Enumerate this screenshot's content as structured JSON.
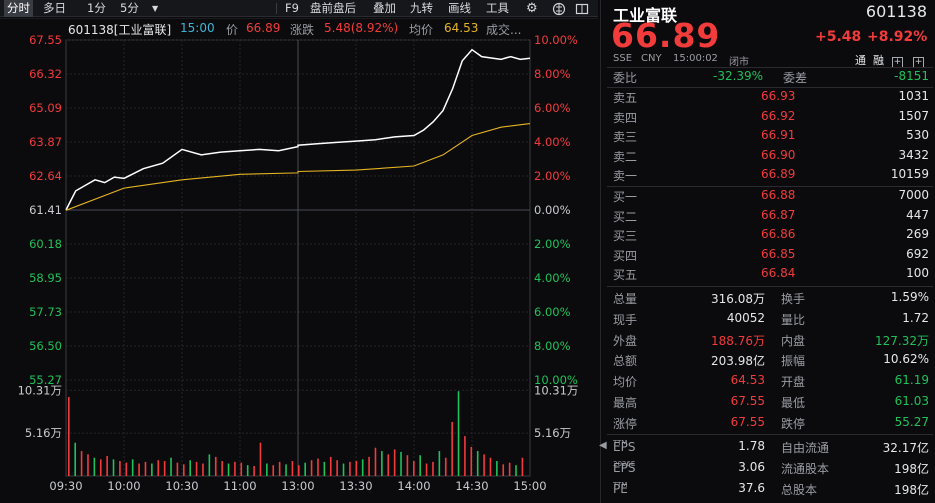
{
  "toolbar": {
    "tabs": [
      "分时",
      "多日",
      "1分",
      "5分"
    ],
    "more_icon": "caret-down-icon",
    "actions": [
      "F9",
      "盘前盘后",
      "叠加",
      "九转",
      "画线",
      "工具"
    ],
    "icons": [
      "settings-icon",
      "brain-icon"
    ]
  },
  "chart": {
    "code_label": "601138[工业富联]",
    "time": "15:00",
    "price_label": "价",
    "price": "66.89",
    "change_label": "涨跌",
    "change": "5.48(8.92%)",
    "avg_label": "均价",
    "avg": "64.53",
    "volume_label": "成交..."
  },
  "chart_data": {
    "type": "line",
    "title": "601138[工业富联] 分时",
    "x_ticks": [
      "09:30",
      "10:00",
      "10:30",
      "11:00",
      "13:00",
      "13:30",
      "14:00",
      "14:30",
      "15:00"
    ],
    "y_left_ticks": [
      "67.55",
      "66.32",
      "65.09",
      "63.87",
      "62.64",
      "61.41",
      "60.18",
      "58.95",
      "57.73",
      "56.50",
      "55.27"
    ],
    "y_right_ticks": [
      "10.00%",
      "8.00%",
      "6.00%",
      "4.00%",
      "2.00%",
      "0.00%",
      "2.00%",
      "4.00%",
      "6.00%",
      "8.00%",
      "10.00%"
    ],
    "volume_ticks": [
      "10.31万",
      "5.16万"
    ],
    "ylim": [
      55.27,
      67.55
    ],
    "series": [
      {
        "name": "价格",
        "x": [
          "09:30",
          "09:35",
          "09:40",
          "09:45",
          "09:50",
          "09:55",
          "10:00",
          "10:10",
          "10:20",
          "10:30",
          "10:40",
          "10:50",
          "11:00",
          "11:10",
          "11:20",
          "11:30",
          "13:00",
          "13:10",
          "13:20",
          "13:30",
          "13:40",
          "13:50",
          "14:00",
          "14:05",
          "14:10",
          "14:15",
          "14:20",
          "14:25",
          "14:30",
          "14:35",
          "14:40",
          "14:45",
          "14:50",
          "14:55",
          "15:00"
        ],
        "values": [
          61.41,
          62.1,
          62.3,
          62.5,
          62.4,
          62.6,
          62.55,
          62.9,
          63.1,
          63.6,
          63.4,
          63.5,
          63.55,
          63.6,
          63.55,
          63.7,
          63.75,
          63.8,
          63.85,
          63.9,
          63.95,
          64.05,
          64.1,
          64.3,
          64.6,
          65.0,
          65.8,
          66.8,
          67.2,
          66.95,
          66.9,
          66.85,
          66.95,
          66.85,
          66.89
        ]
      },
      {
        "name": "均价",
        "x": [
          "09:30",
          "10:00",
          "10:30",
          "11:00",
          "11:30",
          "13:00",
          "13:30",
          "14:00",
          "14:15",
          "14:30",
          "14:45",
          "15:00"
        ],
        "values": [
          61.4,
          62.2,
          62.5,
          62.7,
          62.75,
          62.8,
          62.85,
          63.0,
          63.4,
          64.1,
          64.4,
          64.53
        ]
      }
    ],
    "volume_values": [
      9.5,
      4.0,
      3.0,
      2.6,
      2.2,
      2.0,
      2.4,
      2.0,
      1.8,
      1.6,
      2.0,
      1.5,
      1.7,
      1.5,
      1.9,
      1.8,
      2.2,
      1.6,
      1.4,
      1.9,
      1.7,
      1.5,
      2.6,
      2.3,
      1.8,
      1.5,
      1.7,
      1.6,
      1.3,
      1.2,
      4.0,
      1.5,
      1.3,
      1.7,
      1.4,
      1.8,
      1.3,
      1.6,
      1.9,
      2.1,
      1.7,
      2.3,
      1.9,
      1.5,
      1.7,
      1.8,
      2.0,
      2.3,
      3.4,
      3.0,
      2.6,
      3.2,
      2.9,
      2.5,
      1.8,
      2.5,
      1.5,
      1.7,
      3.0,
      2.2,
      6.5,
      10.2,
      4.8,
      3.5,
      3.0,
      2.6,
      2.2,
      1.8,
      1.4,
      1.6,
      1.3,
      2.2
    ],
    "grid": true
  },
  "quote": {
    "name": "工业富联",
    "code": "601138",
    "price": "66.89",
    "change": "+5.48",
    "change_pct": "+8.92%",
    "exchange": "SSE",
    "currency": "CNY",
    "timestamp": "15:00:02",
    "status": "闭市",
    "extra_labels": [
      "通",
      "融"
    ],
    "ratio_label": "委比",
    "ratio": "-32.39%",
    "diff_label": "委差",
    "diff": "-8151",
    "asks": [
      {
        "label": "卖五",
        "price": "66.93",
        "vol": "1031"
      },
      {
        "label": "卖四",
        "price": "66.92",
        "vol": "1507"
      },
      {
        "label": "卖三",
        "price": "66.91",
        "vol": "530"
      },
      {
        "label": "卖二",
        "price": "66.90",
        "vol": "3432"
      },
      {
        "label": "卖一",
        "price": "66.89",
        "vol": "10159"
      }
    ],
    "bids": [
      {
        "label": "买一",
        "price": "66.88",
        "vol": "7000"
      },
      {
        "label": "买二",
        "price": "66.87",
        "vol": "447"
      },
      {
        "label": "买三",
        "price": "66.86",
        "vol": "269"
      },
      {
        "label": "买四",
        "price": "66.85",
        "vol": "692"
      },
      {
        "label": "买五",
        "price": "66.84",
        "vol": "100"
      }
    ],
    "stats": [
      {
        "l1": "总量",
        "v1": "316.08万",
        "l2": "换手",
        "v2": "1.59%",
        "c1": "white",
        "c2": "white"
      },
      {
        "l1": "现手",
        "v1": "40052",
        "l2": "量比",
        "v2": "1.72",
        "c1": "white",
        "c2": "white"
      },
      {
        "l1": "外盘",
        "v1": "188.76万",
        "l2": "内盘",
        "v2": "127.32万",
        "c1": "red",
        "c2": "green"
      },
      {
        "l1": "总额",
        "v1": "203.98亿",
        "l2": "振幅",
        "v2": "10.62%",
        "c1": "white",
        "c2": "white"
      },
      {
        "l1": "均价",
        "v1": "64.53",
        "l2": "开盘",
        "v2": "61.19",
        "c1": "red",
        "c2": "green"
      },
      {
        "l1": "最高",
        "v1": "67.55",
        "l2": "最低",
        "v2": "61.03",
        "c1": "red",
        "c2": "green"
      },
      {
        "l1": "涨停",
        "v1": "67.55",
        "l2": "跌停",
        "v2": "55.27",
        "c1": "red",
        "c2": "green"
      }
    ],
    "fundamentals": [
      {
        "l1": "EPS",
        "s1": "TTM",
        "v1": "1.78",
        "l2": "自由流通",
        "v2": "32.17亿"
      },
      {
        "l1": "EPS",
        "s1": "2026E",
        "v1": "3.06",
        "l2": "流通股本",
        "v2": "198亿"
      },
      {
        "l1": "PE",
        "s1": "TTM",
        "v1": "37.6",
        "l2": "总股本",
        "v2": "198亿"
      }
    ],
    "collapse_icon": "triangle-left-icon"
  },
  "colors": {
    "up": "#f23b3b",
    "down": "#20c05a",
    "price_line": "#ffffff",
    "avg_line": "#e6b422",
    "background": "#0b0b0e"
  }
}
